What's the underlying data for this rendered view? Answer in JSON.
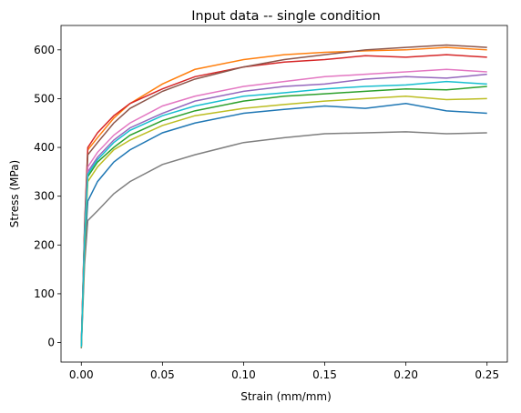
{
  "chart_data": {
    "type": "line",
    "title": "Input data -- single condition",
    "xlabel": "Strain (mm/mm)",
    "ylabel": "Stress (MPa)",
    "x": [
      0,
      0.002,
      0.004,
      0.01,
      0.02,
      0.03,
      0.05,
      0.07,
      0.1,
      0.125,
      0.15,
      0.175,
      0.2,
      0.225,
      0.25
    ],
    "series": [
      {
        "color": "#1f77b4",
        "values": [
          -8,
          180,
          290,
          330,
          370,
          395,
          430,
          450,
          470,
          478,
          485,
          480,
          490,
          475,
          470
        ]
      },
      {
        "color": "#ff7f0e",
        "values": [
          -5,
          230,
          395,
          420,
          460,
          490,
          530,
          560,
          580,
          590,
          595,
          598,
          600,
          605,
          600
        ]
      },
      {
        "color": "#2ca02c",
        "values": [
          -10,
          200,
          340,
          370,
          400,
          425,
          455,
          475,
          495,
          505,
          510,
          515,
          520,
          518,
          525
        ]
      },
      {
        "color": "#d62728",
        "values": [
          -6,
          240,
          400,
          430,
          465,
          490,
          520,
          545,
          565,
          575,
          580,
          588,
          585,
          590,
          585
        ]
      },
      {
        "color": "#9467bd",
        "values": [
          -9,
          210,
          350,
          380,
          415,
          440,
          470,
          495,
          515,
          525,
          530,
          540,
          545,
          542,
          550
        ]
      },
      {
        "color": "#8c564b",
        "values": [
          -7,
          230,
          385,
          410,
          450,
          480,
          515,
          540,
          565,
          580,
          590,
          600,
          605,
          610,
          605
        ]
      },
      {
        "color": "#e377c2",
        "values": [
          -8,
          220,
          360,
          390,
          425,
          450,
          485,
          505,
          525,
          535,
          545,
          550,
          555,
          560,
          555
        ]
      },
      {
        "color": "#7f7f7f",
        "values": [
          -12,
          160,
          250,
          270,
          305,
          330,
          365,
          385,
          410,
          420,
          428,
          430,
          432,
          428,
          430
        ]
      },
      {
        "color": "#bcbd22",
        "values": [
          -10,
          200,
          330,
          360,
          395,
          415,
          445,
          465,
          480,
          488,
          495,
          500,
          505,
          498,
          500
        ]
      },
      {
        "color": "#17becf",
        "values": [
          -9,
          215,
          345,
          375,
          410,
          435,
          465,
          485,
          505,
          512,
          520,
          525,
          528,
          535,
          530
        ]
      }
    ],
    "xlim": [
      -0.0125,
      0.2625
    ],
    "ylim": [
      -40,
      650
    ],
    "xticks": [
      {
        "value": 0,
        "label": "0.00"
      },
      {
        "value": 0.05,
        "label": "0.05"
      },
      {
        "value": 0.1,
        "label": "0.10"
      },
      {
        "value": 0.15,
        "label": "0.15"
      },
      {
        "value": 0.2,
        "label": "0.20"
      },
      {
        "value": 0.25,
        "label": "0.25"
      }
    ],
    "yticks": [
      0,
      100,
      200,
      300,
      400,
      500,
      600
    ],
    "grid": false
  }
}
